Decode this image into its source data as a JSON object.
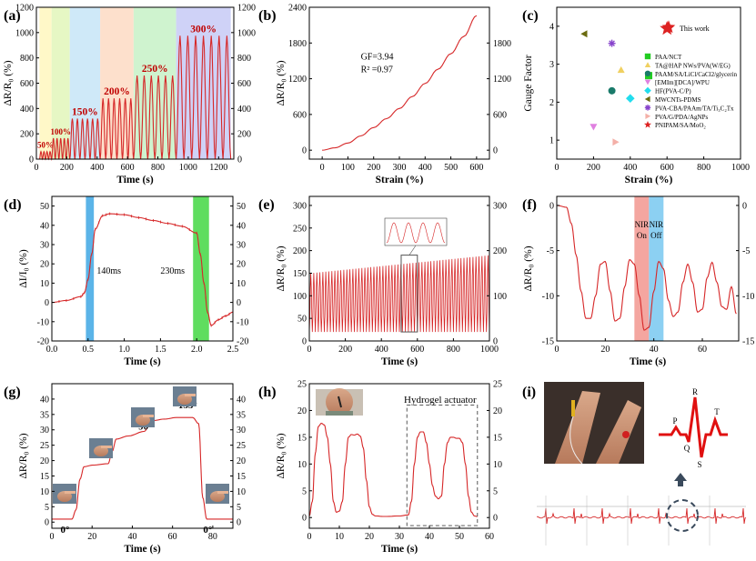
{
  "figure": {
    "colors": {
      "curve": "#d62728",
      "label_red": "#c00000",
      "blue": "#5bb4e8",
      "green": "#5fdd5f",
      "pink": "#f4a6a0"
    }
  },
  "chart_data": [
    {
      "id": "a",
      "panel_label": "(a)",
      "type": "line",
      "xlabel": "Time (s)",
      "ylabel": "ΔR/R₀ (%)",
      "xlim": [
        0,
        1300
      ],
      "ylim": [
        0,
        1200
      ],
      "xticks": [
        "0",
        "200",
        "400",
        "600",
        "800",
        "1000",
        "1200"
      ],
      "yticks": [
        "0",
        "200",
        "400",
        "600",
        "800",
        "1000",
        "1200"
      ],
      "segments": [
        {
          "label": "50%",
          "start": 20,
          "end": 100,
          "cycles": 4,
          "peak": 60,
          "color": "#fff8c8"
        },
        {
          "label": "100%",
          "start": 100,
          "end": 220,
          "cycles": 5,
          "peak": 165,
          "color": "#e6f7c4"
        },
        {
          "label": "150%",
          "start": 220,
          "end": 420,
          "cycles": 6,
          "peak": 320,
          "color": "#cfe9f8"
        },
        {
          "label": "200%",
          "start": 420,
          "end": 640,
          "cycles": 6,
          "peak": 480,
          "color": "#fde0cc"
        },
        {
          "label": "250%",
          "start": 640,
          "end": 920,
          "cycles": 6,
          "peak": 660,
          "color": "#cff3cf"
        },
        {
          "label": "300%",
          "start": 920,
          "end": 1280,
          "cycles": 7,
          "peak": 975,
          "color": "#cfd2f7"
        }
      ]
    },
    {
      "id": "b",
      "panel_label": "(b)",
      "type": "line",
      "xlabel": "Strain (%)",
      "ylabel": "ΔR/R₀ (%)",
      "xlim": [
        -50,
        650
      ],
      "ylim": [
        -150,
        2400
      ],
      "xticks": [
        0,
        100,
        200,
        300,
        400,
        500,
        600
      ],
      "yticks": [
        0,
        600,
        1200,
        1800,
        2400
      ],
      "y2ticks": [
        0,
        600,
        1200,
        1800
      ],
      "x": [
        0,
        50,
        100,
        150,
        200,
        250,
        300,
        350,
        400,
        450,
        500,
        550,
        600
      ],
      "y": [
        0,
        40,
        120,
        240,
        380,
        530,
        700,
        900,
        1120,
        1360,
        1620,
        1910,
        2260
      ],
      "annotations": [
        "GF=3.94",
        "R² =0.97"
      ]
    },
    {
      "id": "c",
      "panel_label": "(c)",
      "type": "scatter",
      "xlabel": "Strain (%)",
      "ylabel": "Gauge Factor",
      "xlim": [
        0,
        1000
      ],
      "ylim": [
        0.5,
        4.5
      ],
      "xticks": [
        0,
        200,
        400,
        600,
        800,
        1000
      ],
      "yticks": [
        1,
        2,
        3,
        4
      ],
      "highlight_label": "This work",
      "points": [
        {
          "name": "PAA/NCT",
          "x": 500,
          "y": 2.7,
          "marker": "square",
          "color": "#22cc22"
        },
        {
          "name": "TA@HAP NWs/PVA(W/EG)",
          "x": 350,
          "y": 2.85,
          "marker": "triangle",
          "color": "#f0d060"
        },
        {
          "name": "PAAM/SA/LiCl/CaCl2/glycerin",
          "x": 300,
          "y": 2.3,
          "marker": "circle",
          "color": "#1a7a6a"
        },
        {
          "name": "[EMIm][DCA]/WPU",
          "x": 200,
          "y": 1.35,
          "marker": "triangle-down",
          "color": "#e080e0"
        },
        {
          "name": "HF(PVA-C/P)",
          "x": 400,
          "y": 2.1,
          "marker": "diamond",
          "color": "#22ddee"
        },
        {
          "name": "MWCNTs-PDMS",
          "x": 150,
          "y": 3.8,
          "marker": "triangle-left",
          "color": "#6b6b10"
        },
        {
          "name": "PVA-CBA/PAAm/TA/Ti₃C₂Tx",
          "x": 300,
          "y": 3.55,
          "marker": "star6",
          "color": "#8844cc"
        },
        {
          "name": "PVA/G/PDA/AgNPs",
          "x": 320,
          "y": 0.95,
          "marker": "triangle-right",
          "color": "#f4b0a8"
        },
        {
          "name": "PNIPAM/SA/MoO₂",
          "x": 600,
          "y": 3.94,
          "marker": "star",
          "color": "#dd2222"
        }
      ]
    },
    {
      "id": "d",
      "panel_label": "(d)",
      "type": "line",
      "xlabel": "Time (s)",
      "ylabel": "ΔI/I₀ (%)",
      "xlim": [
        0,
        2.5
      ],
      "ylim": [
        -20,
        55
      ],
      "xticks": [
        "0.0",
        "0.5",
        "1.0",
        "1.5",
        "2.0",
        "2.5"
      ],
      "yticks": [
        -20,
        -10,
        0,
        10,
        20,
        30,
        40,
        50
      ],
      "x": [
        0,
        0.2,
        0.4,
        0.45,
        0.5,
        0.55,
        0.6,
        0.7,
        0.8,
        1.0,
        1.2,
        1.4,
        1.6,
        1.8,
        2.0,
        2.05,
        2.1,
        2.15,
        2.2,
        2.3,
        2.4,
        2.5
      ],
      "y": [
        0,
        1,
        3,
        5,
        12,
        25,
        38,
        45,
        46,
        45.5,
        44,
        42.5,
        41,
        39.5,
        36,
        25,
        10,
        -5,
        -12,
        -9,
        -7,
        -5
      ],
      "bands": [
        {
          "start": 0.47,
          "end": 0.58,
          "color": "#5bb4e8"
        },
        {
          "start": 1.95,
          "end": 2.17,
          "color": "#5fdd5f"
        }
      ],
      "annotations": [
        "140ms",
        "230ms"
      ]
    },
    {
      "id": "e",
      "panel_label": "(e)",
      "type": "line",
      "xlabel": "Time (s)",
      "ylabel": "ΔR/R₀ (%)",
      "xlim": [
        0,
        1000
      ],
      "ylim": [
        0,
        320
      ],
      "xticks": [
        0,
        200,
        400,
        600,
        800,
        1000
      ],
      "yticks": [
        0,
        50,
        100,
        150,
        200,
        250,
        300
      ],
      "y2ticks": [
        0,
        100,
        200,
        300
      ],
      "cycles": 60,
      "peak_start": 150,
      "peak_end": 190
    },
    {
      "id": "f",
      "panel_label": "(f)",
      "type": "line",
      "xlabel": "Time (s)",
      "ylabel": "ΔR/R₀ (%)",
      "xlim": [
        0,
        75
      ],
      "ylim": [
        -15,
        1
      ],
      "xticks": [
        0,
        20,
        40,
        60
      ],
      "yticks": [
        0,
        -5,
        -10,
        -15
      ],
      "x": [
        0,
        4,
        6,
        8,
        10,
        12,
        14,
        16,
        18,
        20,
        22,
        24,
        26,
        28,
        30,
        32,
        34,
        36,
        38,
        40,
        42,
        44,
        46,
        48,
        50,
        52,
        54,
        56,
        58,
        60,
        62,
        64,
        66,
        68,
        70,
        72,
        74
      ],
      "y": [
        0,
        -0.2,
        -2,
        -5.5,
        -9.5,
        -12.5,
        -12.5,
        -10,
        -6.5,
        -6.2,
        -9.5,
        -12.8,
        -12.5,
        -9,
        -6,
        -6.5,
        -10,
        -13.8,
        -13.5,
        -9.5,
        -6.2,
        -7,
        -10.5,
        -12.3,
        -11.8,
        -8.5,
        -6.5,
        -8.5,
        -11.8,
        -11.5,
        -8,
        -6.3,
        -8.5,
        -11.2,
        -11.5,
        -9,
        -12
      ],
      "bands": [
        {
          "start": 32,
          "end": 38,
          "color": "#f4a6a0",
          "label": [
            "NIR",
            "On"
          ]
        },
        {
          "start": 38,
          "end": 44,
          "color": "#8cd0f2",
          "label": [
            "NIR",
            "Off"
          ]
        }
      ]
    },
    {
      "id": "g",
      "panel_label": "(g)",
      "type": "line",
      "xlabel": "Time (s)",
      "ylabel": "ΔR/R₀ (%)",
      "xlim": [
        0,
        90
      ],
      "ylim": [
        -2,
        45
      ],
      "xticks": [
        0,
        20,
        40,
        60,
        80
      ],
      "yticks": [
        0,
        5,
        10,
        15,
        20,
        25,
        30,
        35,
        40
      ],
      "x": [
        0,
        10,
        12,
        14,
        16,
        20,
        28,
        30,
        32,
        38,
        46,
        48,
        50,
        56,
        62,
        64,
        66,
        70,
        73,
        75,
        77,
        79,
        90
      ],
      "y": [
        1,
        1,
        4,
        14,
        18,
        18.5,
        19,
        23,
        27,
        28,
        29.5,
        31,
        33,
        33.5,
        34,
        34,
        34,
        34,
        32,
        8,
        1,
        1,
        1
      ],
      "annotations": [
        "0°",
        "45°",
        "90°",
        "135°",
        "0°"
      ]
    },
    {
      "id": "h",
      "panel_label": "(h)",
      "type": "line",
      "xlabel": "Time (s)",
      "ylabel": "ΔR/R₀ (%)",
      "xlim": [
        0,
        60
      ],
      "ylim": [
        -2,
        25
      ],
      "xticks": [
        0,
        10,
        20,
        30,
        40,
        50,
        60
      ],
      "yticks": [
        0,
        5,
        10,
        15,
        20,
        25
      ],
      "x": [
        0,
        1,
        2,
        3,
        4,
        5,
        6,
        7,
        8,
        9,
        10,
        11,
        12,
        13,
        14,
        15,
        16,
        17,
        18,
        19,
        20,
        21,
        22,
        25,
        30,
        33,
        34,
        35,
        36,
        37,
        38,
        39,
        40,
        41,
        42,
        43,
        44,
        45,
        46,
        47,
        48,
        49,
        50,
        51,
        52,
        53,
        54,
        55,
        56
      ],
      "y": [
        0.3,
        3,
        12,
        17,
        17.6,
        17.3,
        15,
        10,
        3,
        1,
        1.2,
        3,
        10,
        15,
        15.5,
        15.4,
        15.6,
        15.2,
        13,
        7,
        2,
        0.6,
        0.3,
        0.2,
        0.3,
        0.5,
        3,
        10,
        15,
        16,
        16,
        14,
        10,
        6,
        4,
        3.5,
        4,
        10,
        14,
        15,
        15,
        14.8,
        14.8,
        14,
        10,
        4,
        1,
        0.3,
        0.2
      ],
      "annotations": [
        "Hydrogel actuator"
      ]
    },
    {
      "id": "i",
      "panel_label": "(i)",
      "type": "line",
      "ecg_labels": [
        "P",
        "Q",
        "R",
        "S",
        "T"
      ]
    }
  ]
}
